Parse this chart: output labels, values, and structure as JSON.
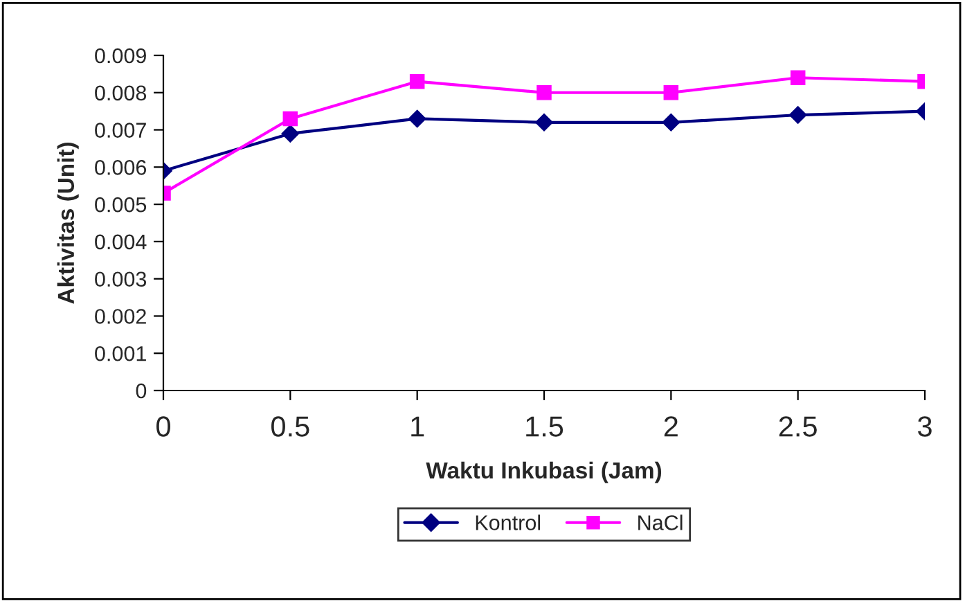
{
  "chart_data": {
    "type": "line",
    "xlabel": "Waktu Inkubasi (Jam)",
    "ylabel": "Aktivitas (Unit)",
    "x": [
      0,
      0.5,
      1,
      1.5,
      2,
      2.5,
      3
    ],
    "series": [
      {
        "name": "Kontrol",
        "color": "#000080",
        "marker": "diamond",
        "values": [
          0.0059,
          0.0069,
          0.0073,
          0.0072,
          0.0072,
          0.0074,
          0.0075
        ]
      },
      {
        "name": "NaCl",
        "color": "#ff00ff",
        "marker": "square",
        "values": [
          0.0053,
          0.0073,
          0.0083,
          0.008,
          0.008,
          0.0084,
          0.0083
        ]
      }
    ],
    "xlim": [
      0,
      3
    ],
    "xticks": [
      0,
      0.5,
      1,
      1.5,
      2,
      2.5,
      3
    ],
    "ylim": [
      0,
      0.009
    ],
    "yticks": [
      0,
      0.001,
      0.002,
      0.003,
      0.004,
      0.005,
      0.006,
      0.007,
      0.008,
      0.009
    ],
    "grid": false,
    "legend": "bottom"
  }
}
